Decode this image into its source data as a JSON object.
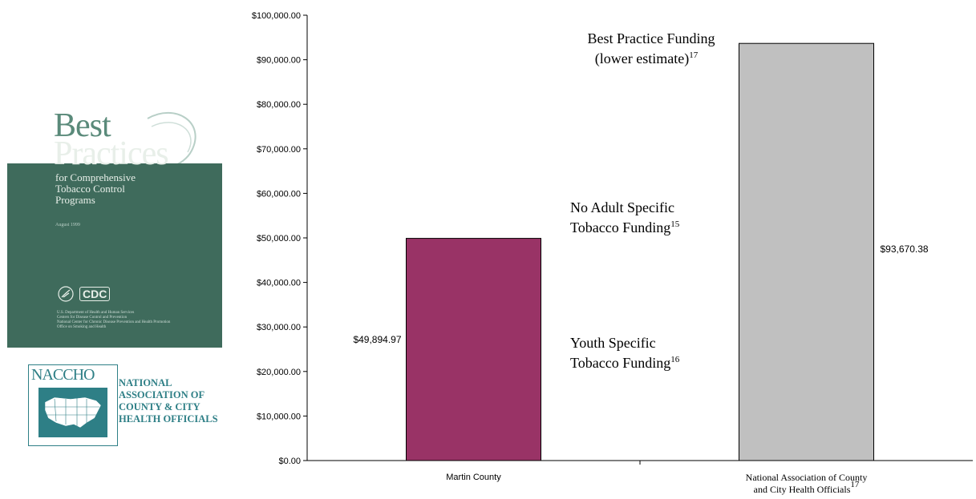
{
  "chart_data": {
    "type": "bar",
    "categories": [
      "Martin County",
      "National Association of County and City Health Officials"
    ],
    "category_labels": [
      {
        "lines": [
          "Martin County"
        ],
        "sup": ""
      },
      {
        "lines": [
          "National Association of County",
          "and City Health Officials"
        ],
        "sup": "17"
      }
    ],
    "values": [
      49894.97,
      93670.38
    ],
    "value_labels": [
      "$49,894.97",
      "$93,670.38"
    ],
    "bar_colors": [
      "#993366",
      "#c0c0c0"
    ],
    "ylim": [
      0,
      100000
    ],
    "yticks": [
      0,
      10000,
      20000,
      30000,
      40000,
      50000,
      60000,
      70000,
      80000,
      90000,
      100000
    ],
    "ytick_labels": [
      "$0.00",
      "$10,000.00",
      "$20,000.00",
      "$30,000.00",
      "$40,000.00",
      "$50,000.00",
      "$60,000.00",
      "$70,000.00",
      "$80,000.00",
      "$90,000.00",
      "$100,000.00"
    ],
    "grid": false,
    "annotations": [
      {
        "id": "best-practice",
        "lines": [
          {
            "text": "Best Practice Funding",
            "sup": ""
          },
          {
            "text": "(lower estimate)",
            "sup": "17"
          }
        ]
      },
      {
        "id": "no-adult",
        "lines": [
          {
            "text": "No Adult Specific",
            "sup": ""
          },
          {
            "text": "Tobacco Funding",
            "sup": "15"
          }
        ]
      },
      {
        "id": "youth",
        "lines": [
          {
            "text": "Youth Specific",
            "sup": ""
          },
          {
            "text": "Tobacco Funding",
            "sup": "16"
          }
        ]
      }
    ]
  },
  "cover": {
    "title_line1": "Best",
    "title_line2": "Practices",
    "subtitle": [
      "for Comprehensive",
      "Tobacco Control",
      "Programs"
    ],
    "date": "August 1999",
    "agency_mark": "CDC",
    "fine_print": [
      "U.S. Department of Health and Human Services",
      "Centers for Disease Control and Prevention",
      "National Center for Chronic Disease Prevention and Health Promotion",
      "Office on Smoking and Health"
    ]
  },
  "naccho_logo": {
    "wordmark": "NACCHO",
    "name_lines": [
      "NATIONAL",
      "ASSOCIATION OF",
      "COUNTY & CITY",
      "HEALTH OFFICIALS"
    ]
  }
}
